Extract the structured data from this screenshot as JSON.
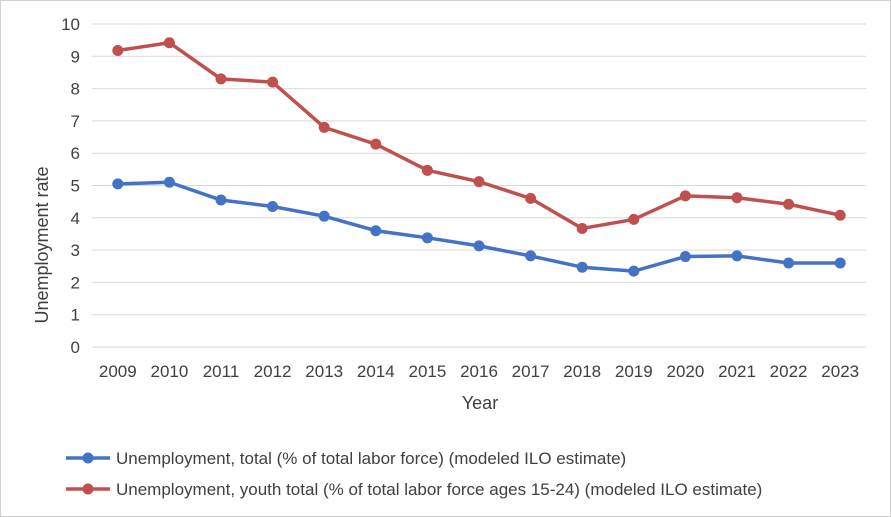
{
  "chart_data": {
    "type": "line",
    "title": "",
    "xlabel": "Year",
    "ylabel": "Unemployment rate",
    "ylim": [
      0,
      10
    ],
    "yticks": [
      "0",
      "1",
      "2",
      "3",
      "4",
      "5",
      "6",
      "7",
      "8",
      "9",
      "10"
    ],
    "grid": "horizontal",
    "legend_position": "bottom",
    "categories": [
      "2009",
      "2010",
      "2011",
      "2012",
      "2013",
      "2014",
      "2015",
      "2016",
      "2017",
      "2018",
      "2019",
      "2020",
      "2021",
      "2022",
      "2023"
    ],
    "series": [
      {
        "name": "Unemployment, total (% of total labor force) (modeled ILO estimate)",
        "color": "#4472C4",
        "values": [
          5.05,
          5.1,
          4.55,
          4.35,
          4.05,
          3.6,
          3.38,
          3.13,
          2.82,
          2.47,
          2.35,
          2.8,
          2.82,
          2.6,
          2.6
        ]
      },
      {
        "name": "Unemployment, youth total (% of total labor force ages 15-24) (modeled ILO estimate)",
        "color": "#C0504D",
        "values": [
          9.18,
          9.42,
          8.3,
          8.2,
          6.8,
          6.28,
          5.47,
          5.12,
          4.6,
          3.67,
          3.95,
          4.68,
          4.62,
          4.42,
          4.08
        ]
      }
    ]
  }
}
